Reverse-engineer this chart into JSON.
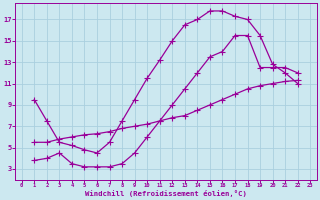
{
  "background_color": "#cce8f0",
  "grid_color": "#aacfdf",
  "line_color": "#990099",
  "marker_color": "#990099",
  "xlabel": "Windchill (Refroidissement éolien,°C)",
  "xlabel_color": "#990099",
  "tick_color": "#990099",
  "xlim": [
    -0.5,
    23.5
  ],
  "ylim": [
    2.0,
    18.5
  ],
  "yticks": [
    3,
    5,
    7,
    9,
    11,
    13,
    15,
    17
  ],
  "xticks": [
    0,
    1,
    2,
    3,
    4,
    5,
    6,
    7,
    8,
    9,
    10,
    11,
    12,
    13,
    14,
    15,
    16,
    17,
    18,
    19,
    20,
    21,
    22,
    23
  ],
  "curve1_x": [
    1,
    2,
    3,
    4,
    5,
    6,
    7,
    8,
    9,
    10,
    11,
    12,
    13,
    14,
    15,
    16,
    17,
    18,
    19,
    20,
    21,
    22
  ],
  "curve1_y": [
    9.5,
    7.5,
    5.5,
    5.2,
    4.8,
    4.5,
    5.5,
    7.5,
    9.5,
    11.5,
    13.2,
    15.0,
    16.5,
    17.0,
    17.8,
    17.8,
    17.3,
    17.0,
    15.5,
    12.8,
    12.0,
    11.0
  ],
  "curve2_x": [
    1,
    2,
    3,
    4,
    5,
    6,
    7,
    8,
    9,
    10,
    11,
    12,
    13,
    14,
    15,
    16,
    17,
    18,
    19,
    20,
    21,
    22
  ],
  "curve2_y": [
    3.8,
    4.0,
    4.5,
    3.5,
    3.2,
    3.2,
    3.2,
    3.5,
    4.5,
    6.0,
    7.5,
    9.0,
    10.5,
    12.0,
    13.5,
    14.0,
    15.5,
    15.5,
    12.5,
    12.5,
    12.5,
    12.0
  ],
  "curve3_x": [
    1,
    2,
    3,
    4,
    5,
    6,
    7,
    8,
    9,
    10,
    11,
    12,
    13,
    14,
    15,
    16,
    17,
    18,
    19,
    20,
    21,
    22
  ],
  "curve3_y": [
    5.5,
    5.5,
    5.8,
    6.0,
    6.2,
    6.3,
    6.5,
    6.8,
    7.0,
    7.2,
    7.5,
    7.8,
    8.0,
    8.5,
    9.0,
    9.5,
    10.0,
    10.5,
    10.8,
    11.0,
    11.2,
    11.3
  ]
}
